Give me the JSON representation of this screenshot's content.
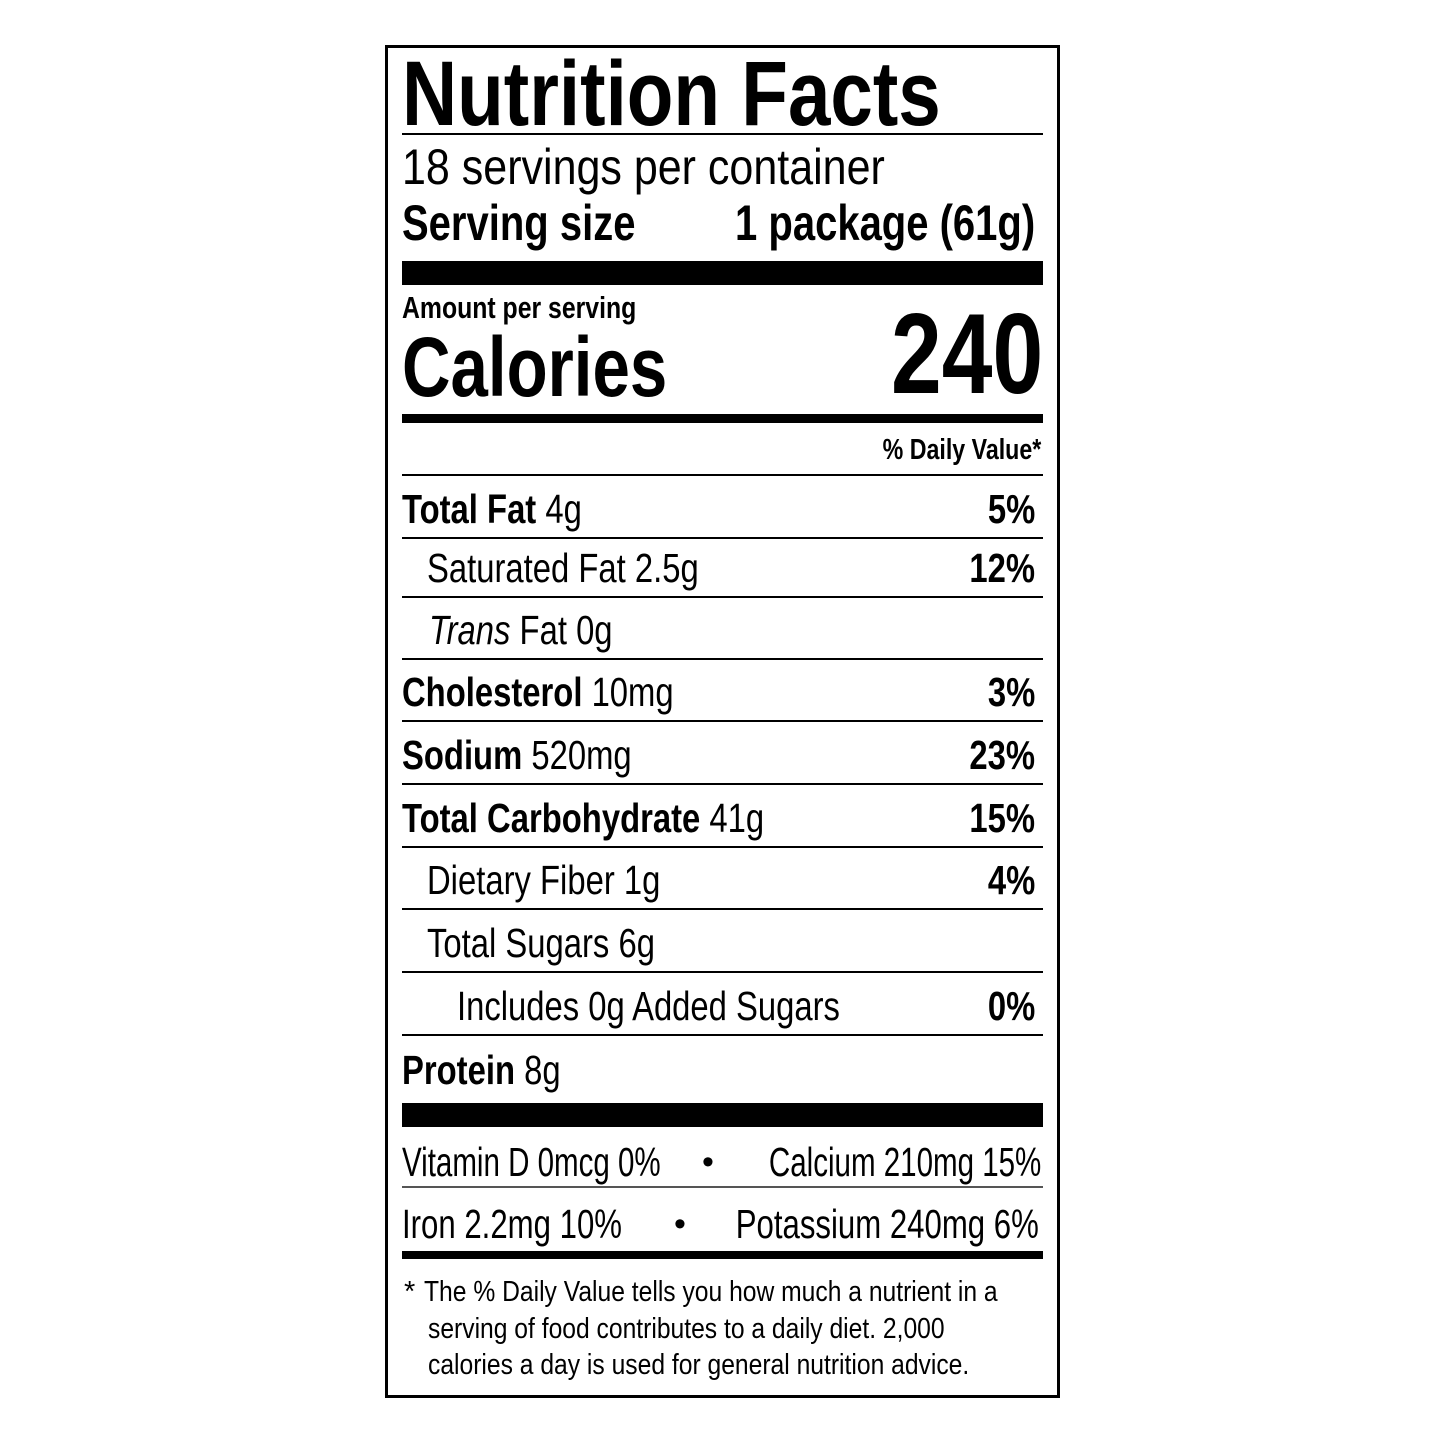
{
  "title": "Nutrition Facts",
  "servings": "18 servings per container",
  "serving_size_label": "Serving size",
  "serving_size_value": "1 package (61g)",
  "amount_per_serving": "Amount per serving",
  "calories_label": "Calories",
  "calories_value": "240",
  "daily_value_header": "% Daily Value*",
  "nutrients": [
    {
      "name": "Total Fat",
      "amount": "4g",
      "dv": "5%"
    },
    {
      "name": "Saturated Fat",
      "amount": "2.5g",
      "dv": "12%"
    },
    {
      "name_italic": "Trans",
      "name": "Fat",
      "amount": "0g",
      "dv": ""
    },
    {
      "name": "Cholesterol",
      "amount": "10mg",
      "dv": "3%"
    },
    {
      "name": "Sodium",
      "amount": "520mg",
      "dv": "23%"
    },
    {
      "name": "Total Carbohydrate",
      "amount": "41g",
      "dv": "15%"
    },
    {
      "name": "Dietary Fiber",
      "amount": "1g",
      "dv": "4%"
    },
    {
      "name": "Total Sugars",
      "amount": "6g",
      "dv": ""
    },
    {
      "name": "Includes 0g Added Sugars",
      "amount": "",
      "dv": "0%"
    },
    {
      "name": "Protein",
      "amount": "8g",
      "dv": ""
    }
  ],
  "micronutrients": [
    {
      "left": "Vitamin D 0mcg 0%",
      "right": "Calcium 210mg 15%"
    },
    {
      "left": "Iron 2.2mg 10%",
      "right": "Potassium 240mg 6%"
    }
  ],
  "bullet": "•",
  "footnote": {
    "asterisk": "*",
    "lines": [
      "The % Daily Value tells you how much a nutrient in a",
      "serving of food contributes to a daily diet. 2,000",
      "calories a day is used for general nutrition advice."
    ]
  }
}
